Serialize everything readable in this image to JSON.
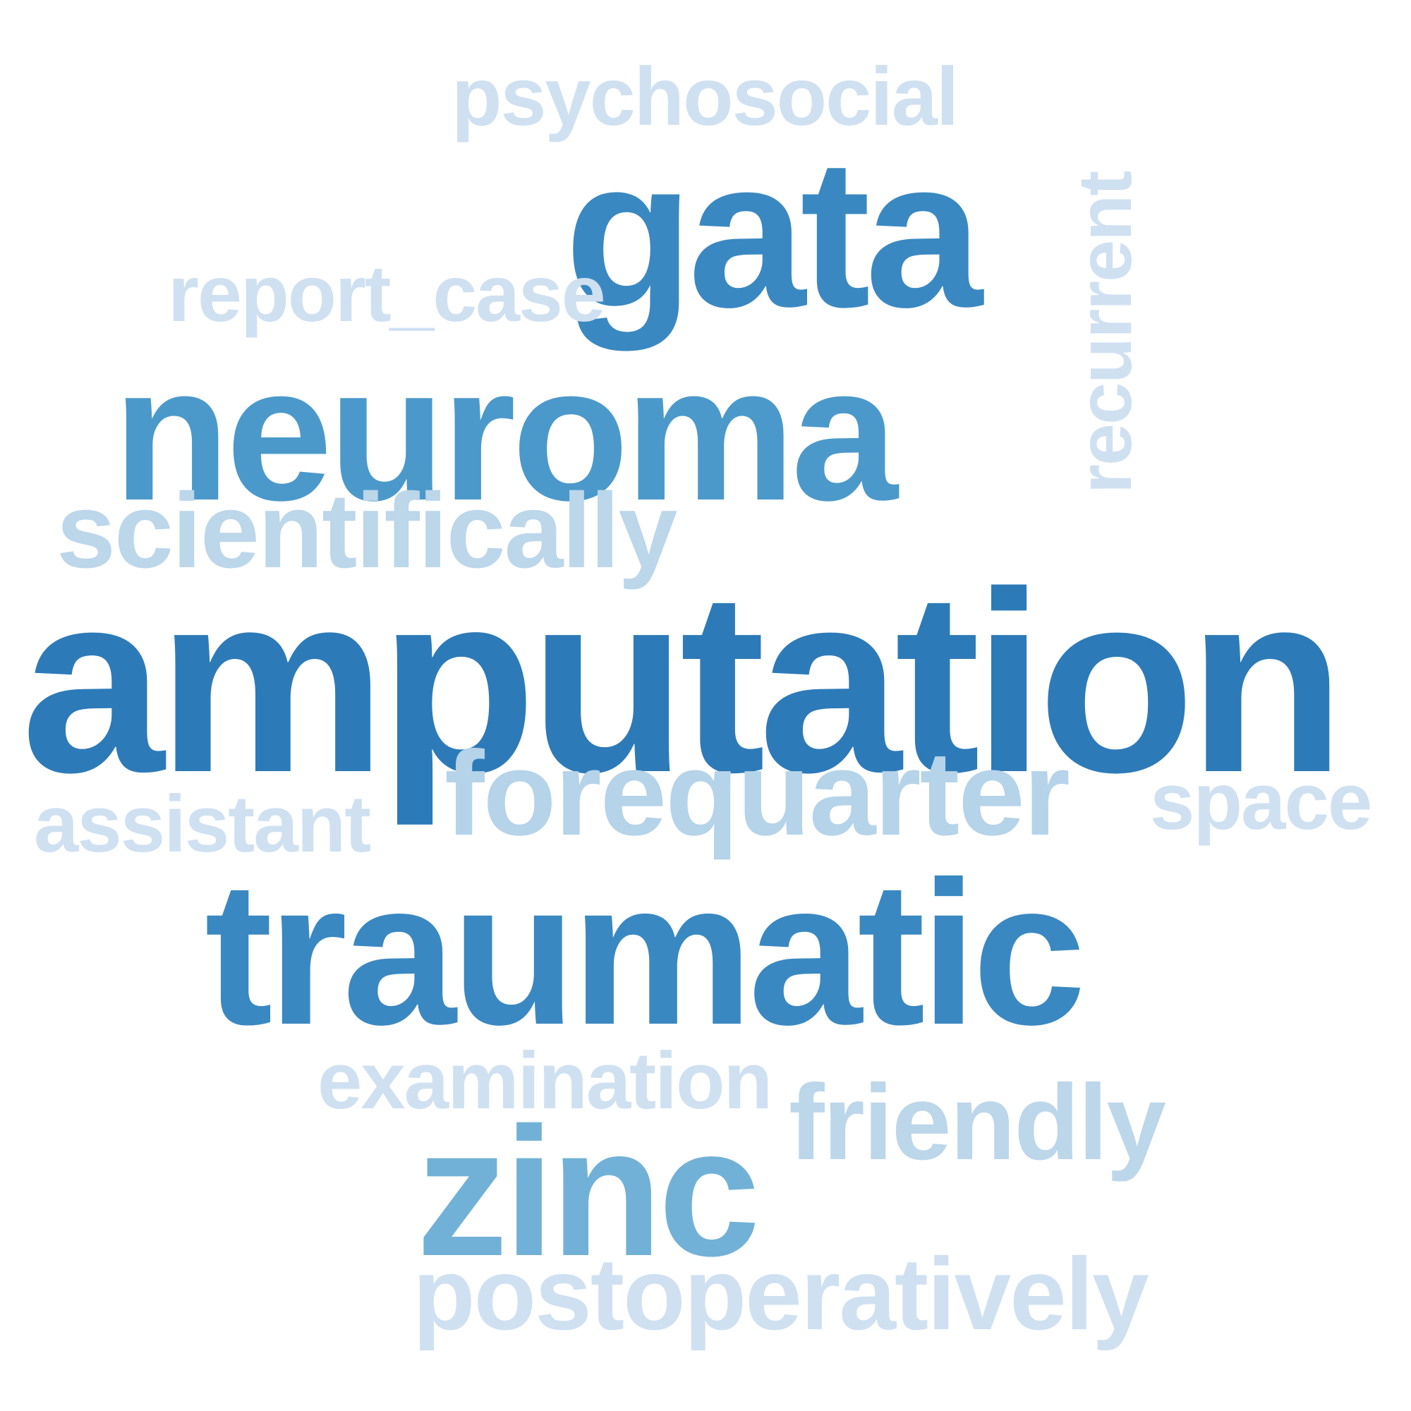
{
  "words": [
    {
      "key": "psychosocial",
      "text": "psychosocial",
      "color": "#cfe0f1"
    },
    {
      "key": "gata",
      "text": "gata",
      "color": "#3a88c1"
    },
    {
      "key": "report_case",
      "text": "report_case",
      "color": "#cfe0f1"
    },
    {
      "key": "recurrent",
      "text": "recurrent",
      "color": "#cfe0f1"
    },
    {
      "key": "neuroma",
      "text": "neuroma",
      "color": "#4b99ca"
    },
    {
      "key": "scientifically",
      "text": "scientifically",
      "color": "#bcd6ea"
    },
    {
      "key": "amputation",
      "text": "amputation",
      "color": "#2d7ab8"
    },
    {
      "key": "forequarter",
      "text": "forequarter",
      "color": "#b5d3e9"
    },
    {
      "key": "assistant",
      "text": "assistant",
      "color": "#cfe0f1"
    },
    {
      "key": "space",
      "text": "space",
      "color": "#cfe0f1"
    },
    {
      "key": "traumatic",
      "text": "traumatic",
      "color": "#3a88c1"
    },
    {
      "key": "examination",
      "text": "examination",
      "color": "#cfe0f1"
    },
    {
      "key": "friendly",
      "text": "friendly",
      "color": "#bcd6ea"
    },
    {
      "key": "zinc",
      "text": "zinc",
      "color": "#72b1d7"
    },
    {
      "key": "postoperatively",
      "text": "postoperatively",
      "color": "#cfe0f1"
    }
  ]
}
